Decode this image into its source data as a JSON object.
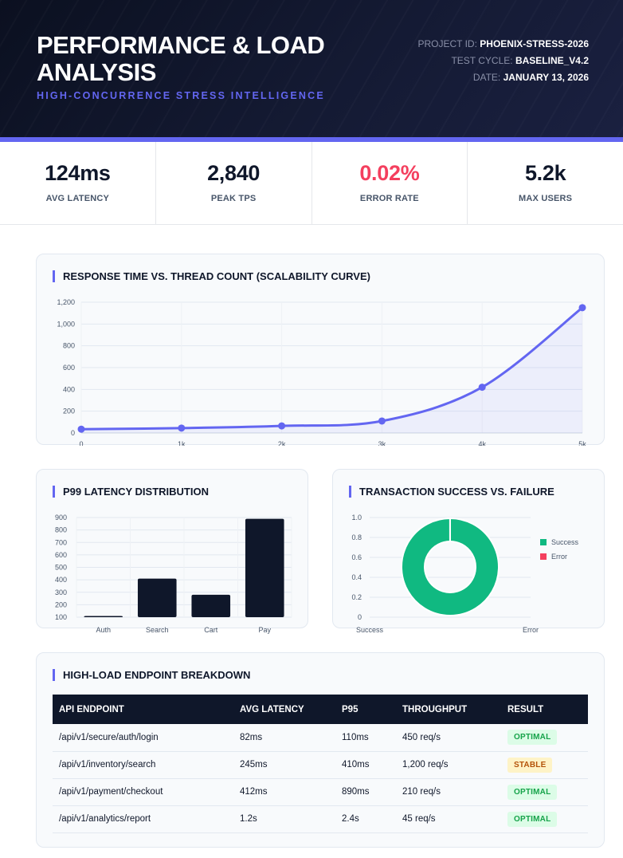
{
  "header": {
    "title": "PERFORMANCE & LOAD ANALYSIS",
    "subtitle": "HIGH-CONCURRENCE STRESS INTELLIGENCE",
    "meta": [
      {
        "label": "PROJECT ID:",
        "value": "PHOENIX-STRESS-2026"
      },
      {
        "label": "TEST CYCLE:",
        "value": "BASELINE_V4.2"
      },
      {
        "label": "DATE:",
        "value": "JANUARY 13, 2026"
      }
    ]
  },
  "kpis": [
    {
      "value": "124ms",
      "label": "AVG LATENCY"
    },
    {
      "value": "2,840",
      "label": "PEAK TPS"
    },
    {
      "value": "0.02%",
      "label": "ERROR RATE"
    },
    {
      "value": "5.2k",
      "label": "MAX USERS"
    }
  ],
  "colors": {
    "accent": "#6366f1",
    "navy": "#0f172a",
    "success": "#10b981",
    "error": "#f43f5e"
  },
  "chart_data": [
    {
      "type": "line",
      "title": "RESPONSE TIME VS. THREAD COUNT (SCALABILITY CURVE)",
      "x": [
        0,
        1000,
        2000,
        3000,
        4000,
        5000
      ],
      "x_tick_labels": [
        "0",
        "1k",
        "2k",
        "3k",
        "4k",
        "5k"
      ],
      "values": [
        35,
        45,
        65,
        110,
        420,
        1150
      ],
      "y_ticks": [
        0,
        200,
        400,
        600,
        800,
        1000,
        1200
      ],
      "y_tick_labels": [
        "0",
        "200",
        "400",
        "600",
        "800",
        "1,000",
        "1,200"
      ],
      "ylim": [
        0,
        1200
      ],
      "xlim": [
        0,
        5000
      ],
      "fill": true
    },
    {
      "type": "bar",
      "title": "P99 LATENCY DISTRIBUTION",
      "categories": [
        "Auth",
        "Search",
        "Cart",
        "Pay"
      ],
      "values": [
        110,
        410,
        280,
        890
      ],
      "y_ticks": [
        100,
        200,
        300,
        400,
        500,
        600,
        700,
        800,
        900
      ],
      "ylim": [
        100,
        900
      ]
    },
    {
      "type": "pie",
      "title": "TRANSACTION SUCCESS VS. FAILURE",
      "categories": [
        "Success",
        "Error"
      ],
      "values": [
        99.98,
        0.02
      ],
      "y_ticks": [
        "0",
        "0.2",
        "0.4",
        "0.6",
        "0.8",
        "1.0"
      ],
      "x_tick_labels": [
        "Success",
        "Error"
      ],
      "legend": [
        "Success",
        "Error"
      ]
    }
  ],
  "table": {
    "title": "HIGH-LOAD ENDPOINT BREAKDOWN",
    "columns": [
      "API ENDPOINT",
      "AVG LATENCY",
      "P95",
      "THROUGHPUT",
      "RESULT"
    ],
    "rows": [
      [
        "/api/v1/secure/auth/login",
        "82ms",
        "110ms",
        "450 req/s",
        "OPTIMAL"
      ],
      [
        "/api/v1/inventory/search",
        "245ms",
        "410ms",
        "1,200 req/s",
        "STABLE"
      ],
      [
        "/api/v1/payment/checkout",
        "412ms",
        "890ms",
        "210 req/s",
        "OPTIMAL"
      ],
      [
        "/api/v1/analytics/report",
        "1.2s",
        "2.4s",
        "45 req/s",
        "OPTIMAL"
      ]
    ]
  }
}
